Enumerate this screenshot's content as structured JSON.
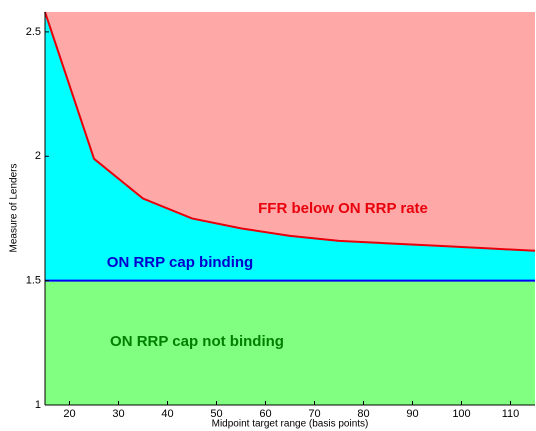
{
  "chart_data": {
    "type": "area",
    "xlabel": "Midpoint target range (basis points)",
    "ylabel": "Measure of Lenders",
    "x": [
      15,
      25,
      35,
      45,
      55,
      65,
      75,
      85,
      95,
      105,
      115
    ],
    "series": [
      {
        "color": "#e8000b",
        "values": [
          2.58,
          1.99,
          1.83,
          1.75,
          1.71,
          1.68,
          1.66,
          1.65,
          1.64,
          1.63,
          1.62
        ]
      },
      {
        "color": "#0000ff",
        "values": [
          1.5,
          1.5,
          1.5,
          1.5,
          1.5,
          1.5,
          1.5,
          1.5,
          1.5,
          1.5,
          1.5
        ]
      }
    ],
    "fill_colors": [
      "#80ff80",
      "#00ffff",
      "#ffa8a8"
    ],
    "annotations": [
      {
        "text": "FFR below ON RRP rate",
        "color": "#e8000b"
      },
      {
        "text": "ON RRP cap binding",
        "color": "#0000cc"
      },
      {
        "text": "ON RRP cap not binding",
        "color": "#008000"
      }
    ],
    "xlim": [
      15,
      115
    ],
    "xticks": [
      20,
      30,
      40,
      50,
      60,
      70,
      80,
      90,
      100,
      110
    ],
    "ylim": [
      1,
      2.58
    ],
    "yticks": [
      1,
      1.5,
      2,
      2.5
    ]
  }
}
